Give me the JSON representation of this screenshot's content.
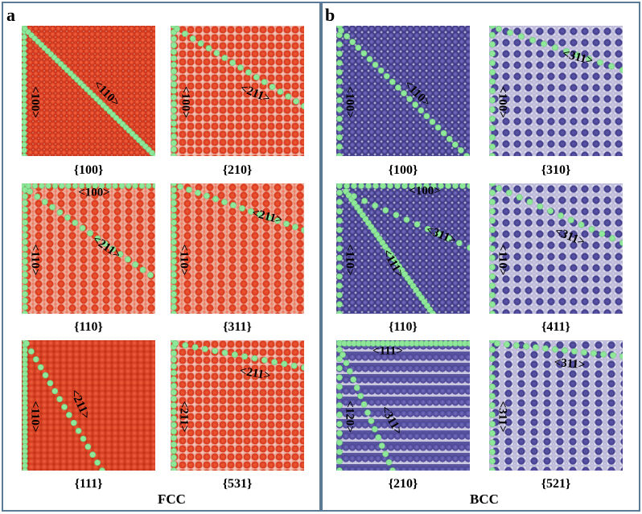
{
  "panels": [
    {
      "letter": "a",
      "structure": "FCC",
      "tiles": [
        {
          "caption": "{100}",
          "labels": [
            "<100>",
            "<110>"
          ]
        },
        {
          "caption": "{210}",
          "labels": [
            "<100>",
            "<211>"
          ]
        },
        {
          "caption": "{110}",
          "labels": [
            "<110>",
            "<211>",
            "<100>"
          ]
        },
        {
          "caption": "{311}",
          "labels": [
            "<110>",
            "<211>"
          ]
        },
        {
          "caption": "{111}",
          "labels": [
            "<110>",
            "<211>"
          ]
        },
        {
          "caption": "{531}",
          "labels": [
            "<211>",
            "<211>"
          ]
        }
      ]
    },
    {
      "letter": "b",
      "structure": "BCC",
      "tiles": [
        {
          "caption": "{100}",
          "labels": [
            "<100>",
            "<110>"
          ]
        },
        {
          "caption": "{310}",
          "labels": [
            "<100>",
            "<311>"
          ]
        },
        {
          "caption": "{110}",
          "labels": [
            "<110>",
            "<111>",
            "<100>",
            "<311>"
          ]
        },
        {
          "caption": "{411}",
          "labels": [
            "<110>",
            "<311>"
          ]
        },
        {
          "caption": "{210}",
          "labels": [
            "<120>",
            "<311>",
            "<111>"
          ]
        },
        {
          "caption": "{521}",
          "labels": [
            "<311>",
            "<311>"
          ]
        }
      ]
    }
  ],
  "colors": {
    "fcc_atom": "#e6472a",
    "bcc_atom": "#4e4a98",
    "boundary_atom": "#8fe79a",
    "frame": "#5a7a96"
  }
}
